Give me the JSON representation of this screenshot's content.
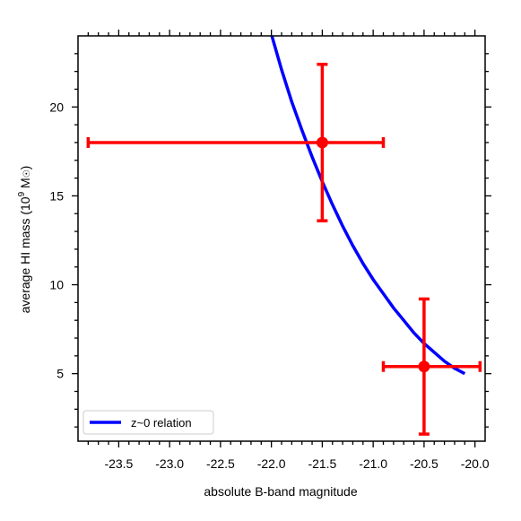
{
  "chart_data": {
    "type": "scatter",
    "xlabel": "absolute B-band magnitude",
    "ylabel_main": "average HI mass (10",
    "ylabel_sup": "9",
    "ylabel_tail": " M",
    "ylabel_sun": "☉",
    "ylabel_close": ")",
    "xlim": [
      -23.9,
      -19.9
    ],
    "ylim": [
      1.2,
      24.0
    ],
    "x_ticks": [
      -23.5,
      -23.0,
      -22.5,
      -22.0,
      -21.5,
      -21.0,
      -20.5,
      -20.0
    ],
    "x_tick_labels": [
      "-23.5",
      "-23.0",
      "-22.5",
      "-22.0",
      "-21.5",
      "-21.0",
      "-20.5",
      "-20.0"
    ],
    "y_ticks": [
      5,
      10,
      15,
      20
    ],
    "y_tick_labels": [
      "5",
      "10",
      "15",
      "20"
    ],
    "grid": false,
    "legend_placement": "bottom-left",
    "series": [
      {
        "name": "z~0 relation",
        "kind": "line",
        "color": "#0000ff",
        "x": [
          -22.0,
          -21.9,
          -21.8,
          -21.7,
          -21.6,
          -21.5,
          -21.4,
          -21.3,
          -21.2,
          -21.1,
          -21.0,
          -20.9,
          -20.8,
          -20.7,
          -20.6,
          -20.5,
          -20.4,
          -20.3,
          -20.2,
          -20.1
        ],
        "y": [
          24.1,
          22.1,
          20.3,
          18.7,
          17.2,
          15.8,
          14.5,
          13.3,
          12.2,
          11.2,
          10.3,
          9.5,
          8.7,
          8.0,
          7.3,
          6.7,
          6.2,
          5.7,
          5.3,
          5.0
        ]
      },
      {
        "kind": "errorbar",
        "color": "#ff0000",
        "points": [
          {
            "x": -21.5,
            "y": 18.0,
            "xerr_low": 2.3,
            "xerr_high": 0.6,
            "yerr_low": 4.4,
            "yerr_high": 4.4
          },
          {
            "x": -20.5,
            "y": 5.4,
            "xerr_low": 0.4,
            "xerr_high": 0.55,
            "yerr_low": 3.8,
            "yerr_high": 3.8
          }
        ]
      }
    ]
  }
}
